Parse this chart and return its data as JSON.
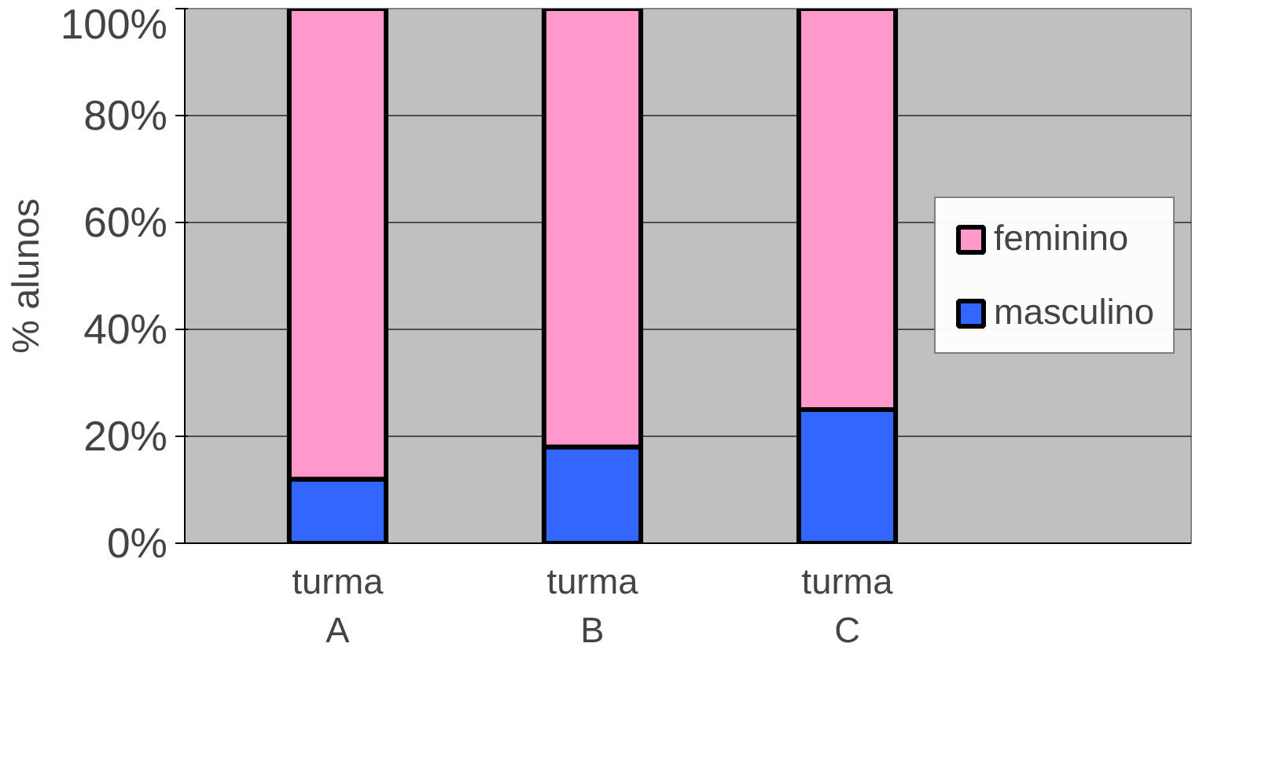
{
  "chart_data": {
    "type": "bar",
    "stacked": true,
    "ylabel": "% alunos",
    "categories": [
      "turma\nA",
      "turma\nB",
      "turma\nC"
    ],
    "series": [
      {
        "name": "masculino",
        "color": "#3366ff",
        "values": [
          12,
          18,
          25
        ]
      },
      {
        "name": "feminino",
        "color": "#ff99cc",
        "values": [
          88,
          82,
          75
        ]
      }
    ],
    "ylim": [
      0,
      100
    ],
    "yticks": [
      {
        "value": 0,
        "label": "0%"
      },
      {
        "value": 20,
        "label": "20%"
      },
      {
        "value": 40,
        "label": "40%"
      },
      {
        "value": 60,
        "label": "60%"
      },
      {
        "value": 80,
        "label": "80%"
      },
      {
        "value": 100,
        "label": "100%"
      }
    ],
    "grid": "y",
    "legend": "right"
  }
}
